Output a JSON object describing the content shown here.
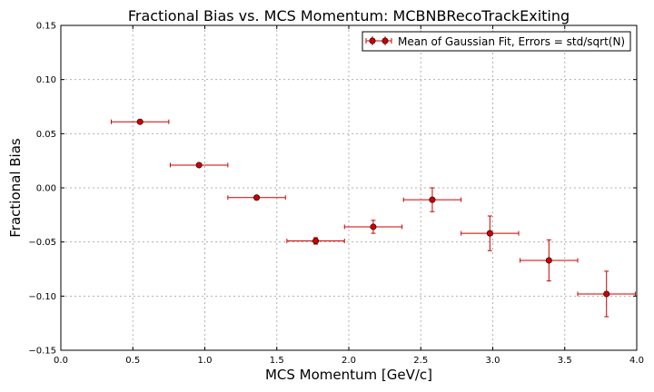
{
  "chart_data": {
    "type": "scatter",
    "title": "Fractional Bias vs. MCS Momentum: MCBNBRecoTrackExiting",
    "xlabel": "MCS Momentum [GeV/c]",
    "ylabel": "Fractional Bias",
    "xlim": [
      0.0,
      4.0
    ],
    "ylim": [
      -0.15,
      0.15
    ],
    "xticks": [
      "0.0",
      "0.5",
      "1.0",
      "1.5",
      "2.0",
      "2.5",
      "3.0",
      "3.5",
      "4.0"
    ],
    "yticks": [
      "−0.15",
      "−0.10",
      "−0.05",
      "0.00",
      "0.05",
      "0.10",
      "0.15"
    ],
    "grid": true,
    "legend_position": "top-right",
    "series": [
      {
        "name": "Mean of Gaussian Fit, Errors = std/sqrt(N)",
        "color": "#cc0000",
        "points": [
          {
            "x": 0.55,
            "y": 0.061,
            "xerr": 0.2,
            "yerr": 0.001
          },
          {
            "x": 0.96,
            "y": 0.021,
            "xerr": 0.2,
            "yerr": 0.001
          },
          {
            "x": 1.36,
            "y": -0.009,
            "xerr": 0.2,
            "yerr": 0.001
          },
          {
            "x": 1.77,
            "y": -0.049,
            "xerr": 0.2,
            "yerr": 0.003
          },
          {
            "x": 2.17,
            "y": -0.036,
            "xerr": 0.2,
            "yerr": 0.006
          },
          {
            "x": 2.58,
            "y": -0.011,
            "xerr": 0.2,
            "yerr": 0.011
          },
          {
            "x": 2.98,
            "y": -0.042,
            "xerr": 0.2,
            "yerr": 0.016
          },
          {
            "x": 3.39,
            "y": -0.067,
            "xerr": 0.2,
            "yerr": 0.019
          },
          {
            "x": 3.79,
            "y": -0.098,
            "xerr": 0.2,
            "yerr": 0.021
          }
        ]
      }
    ]
  }
}
